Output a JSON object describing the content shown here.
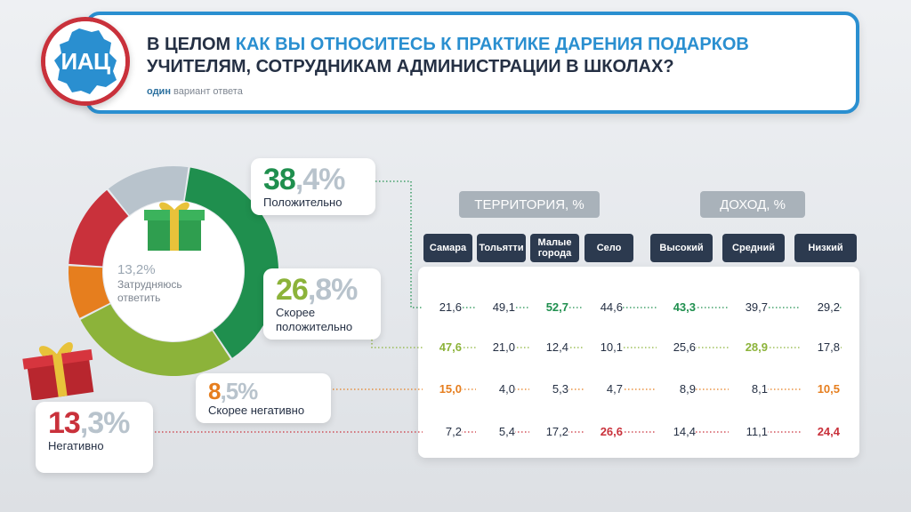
{
  "header": {
    "title_plain_1": "В ЦЕЛОМ ",
    "title_accent": "КАК ВЫ ОТНОСИТЕСЬ К ПРАКТИКЕ ДАРЕНИЯ ПОДАРКОВ",
    "title_plain_2": "УЧИТЕЛЯМ, СОТРУДНИКАМ АДМИНИСТРАЦИИ В ШКОЛАХ?",
    "subtitle_bold": "один",
    "subtitle_rest": " вариант ответа",
    "logo_text": "ИАЦ"
  },
  "colors": {
    "positive": "#1f8f4e",
    "rather_positive": "#8cb33a",
    "rather_negative": "#e67e1e",
    "negative": "#c9313b",
    "undecided": "#b8c3cc",
    "accent": "#2a8fd0"
  },
  "chart_data": {
    "type": "pie",
    "title": "В целом как вы относитесь к практике дарения подарков учителям, сотрудникам администрации в школах?",
    "slices": [
      {
        "key": "positive",
        "label": "Положительно",
        "int": "38",
        "dec": ",4%",
        "value": 38.4
      },
      {
        "key": "rather_positive",
        "label": "Скорее положительно",
        "int": "26",
        "dec": ",8%",
        "value": 26.8
      },
      {
        "key": "rather_negative",
        "label": "Скорее негативно",
        "int": "8",
        "dec": ",5%",
        "value": 8.5
      },
      {
        "key": "negative",
        "label": "Негативно",
        "int": "13",
        "dec": ",3%",
        "value": 13.3
      },
      {
        "key": "undecided",
        "label": "Затрудняюсь ответить",
        "pct_text": "13,2%",
        "value": 13.2
      }
    ],
    "table": {
      "groups": [
        {
          "label": "ТЕРРИТОРИЯ, %",
          "columns": [
            "Самара",
            "Тольятти",
            "Малые города",
            "Село"
          ]
        },
        {
          "label": "ДОХОД, %",
          "columns": [
            "Высокий",
            "Средний",
            "Низкий"
          ]
        }
      ],
      "rows": [
        {
          "key": "positive",
          "values": [
            "21,6",
            "49,1",
            "52,7",
            "44,6",
            "43,3",
            "39,7",
            "29,2"
          ],
          "highlight": [
            2,
            4
          ]
        },
        {
          "key": "rather_positive",
          "values": [
            "47,6",
            "21,0",
            "12,4",
            "10,1",
            "25,6",
            "28,9",
            "17,8"
          ],
          "highlight": [
            0,
            5
          ]
        },
        {
          "key": "rather_negative",
          "values": [
            "15,0",
            "4,0",
            "5,3",
            "4,7",
            "8,9",
            "8,1",
            "10,5"
          ],
          "highlight": [
            0,
            6
          ]
        },
        {
          "key": "negative",
          "values": [
            "7,2",
            "5,4",
            "17,2",
            "26,6",
            "14,4",
            "11,1",
            "24,4"
          ],
          "highlight": [
            3,
            6
          ]
        }
      ]
    }
  }
}
